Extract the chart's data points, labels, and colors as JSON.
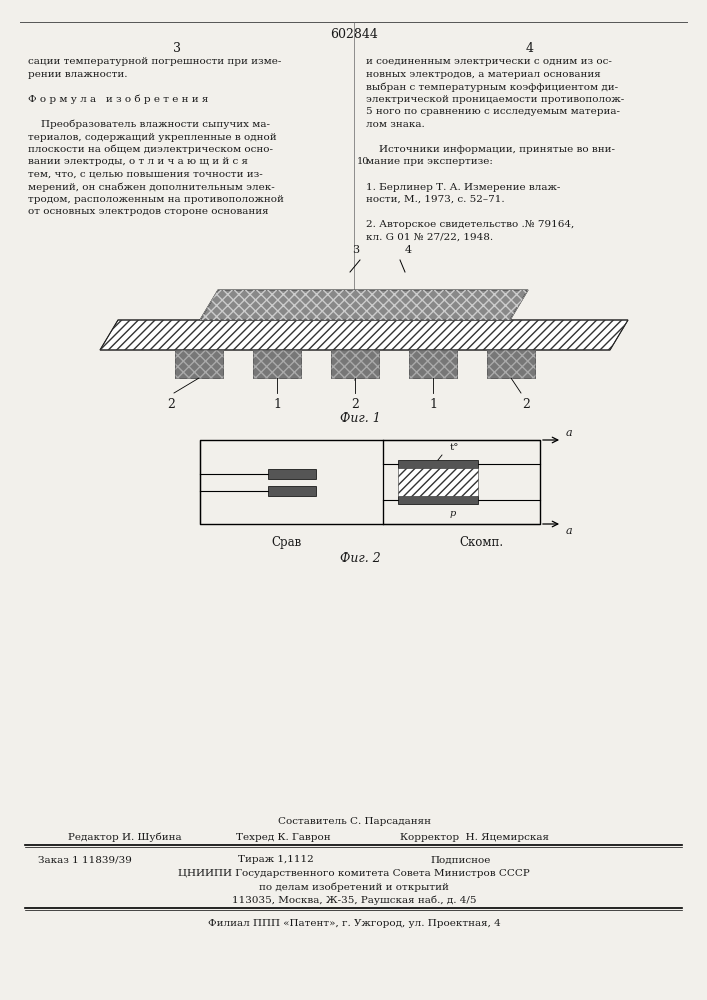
{
  "page_number": "602844",
  "col_left": "3",
  "col_right": "4",
  "bg_color": "#f2f0eb",
  "text_color": "#1a1a1a",
  "formula_heading": "Ф о р м у л а   и з о б р е т е н и я",
  "fig1_caption": "Фиг. 1",
  "fig2_caption": "Фиг. 2",
  "fig2_label_Crav": "Cрав",
  "fig2_label_Ckomp": "Cкомп.",
  "fig2_label_t": "t°",
  "footer_composer": "Составитель С. Парсаданян",
  "footer_editor": "Редактор И. Шубина",
  "footer_techred": "Техред К. Гаврон",
  "footer_corrector": "Корректор  Н. Яцемирская",
  "footer_order": "Заказ 1 11839/39",
  "footer_tirazh": "Тираж 1,1112",
  "footer_podpisnoe": "Подписное",
  "footer_tsniipi": "ЦНИИПИ Государственного комитета Совета Министров СССР",
  "footer_po_delam": "по делам изобретений и открытий",
  "footer_address": "113035, Москва, Ж-35, Раушская наб., д. 4/5",
  "footer_filial": "Филиал ППП «Патент», г. Ужгород, ул. Проектная, 4"
}
